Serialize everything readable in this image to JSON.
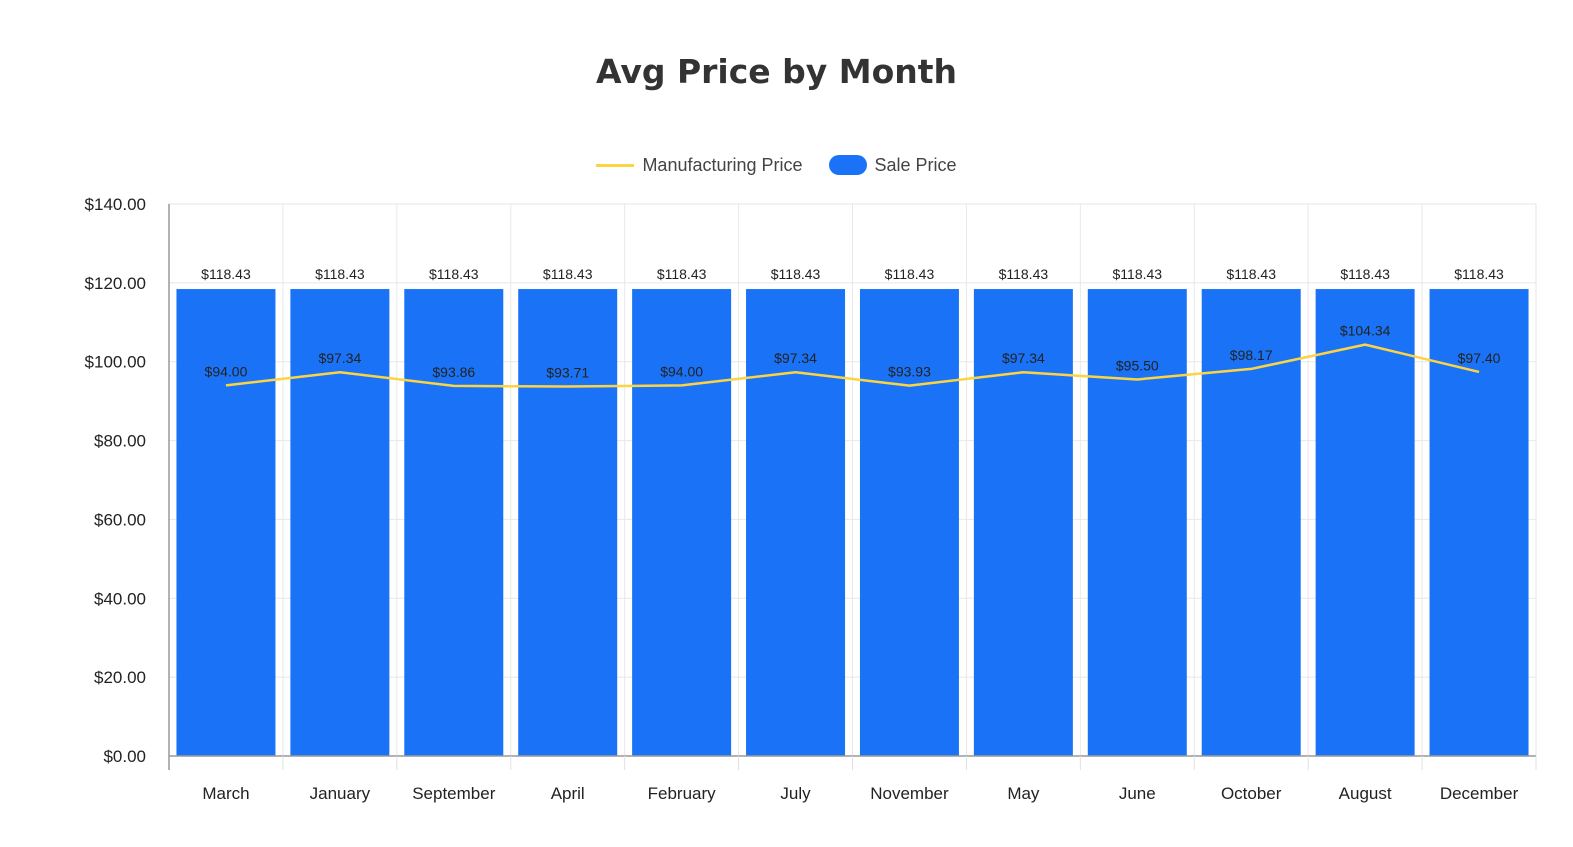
{
  "chart_data": {
    "type": "bar",
    "title": "Avg Price by Month",
    "categories": [
      "March",
      "January",
      "September",
      "April",
      "February",
      "July",
      "November",
      "May",
      "June",
      "October",
      "August",
      "December"
    ],
    "series": [
      {
        "name": "Sale Price",
        "type": "bar",
        "color": "#1a73f6",
        "values": [
          118.43,
          118.43,
          118.43,
          118.43,
          118.43,
          118.43,
          118.43,
          118.43,
          118.43,
          118.43,
          118.43,
          118.43
        ],
        "labels": [
          "$118.43",
          "$118.43",
          "$118.43",
          "$118.43",
          "$118.43",
          "$118.43",
          "$118.43",
          "$118.43",
          "$118.43",
          "$118.43",
          "$118.43",
          "$118.43"
        ]
      },
      {
        "name": "Manufacturing Price",
        "type": "line",
        "color": "#fbd444",
        "values": [
          94.0,
          97.34,
          93.86,
          93.71,
          94.0,
          97.34,
          93.93,
          97.34,
          95.5,
          98.17,
          104.34,
          97.4
        ],
        "labels": [
          "$94.00",
          "$97.34",
          "$93.86",
          "$93.71",
          "$94.00",
          "$97.34",
          "$93.93",
          "$97.34",
          "$95.50",
          "$98.17",
          "$104.34",
          "$97.40"
        ]
      }
    ],
    "ylim": [
      0,
      140
    ],
    "yticks": [
      "$0.00",
      "$20.00",
      "$40.00",
      "$60.00",
      "$80.00",
      "$100.00",
      "$120.00",
      "$140.00"
    ],
    "grid": true,
    "legend_position": "top-center",
    "legend": [
      {
        "label": "Manufacturing Price",
        "marker": "line",
        "color": "#fbd444"
      },
      {
        "label": "Sale Price",
        "marker": "pill",
        "color": "#1a73f6"
      }
    ]
  }
}
